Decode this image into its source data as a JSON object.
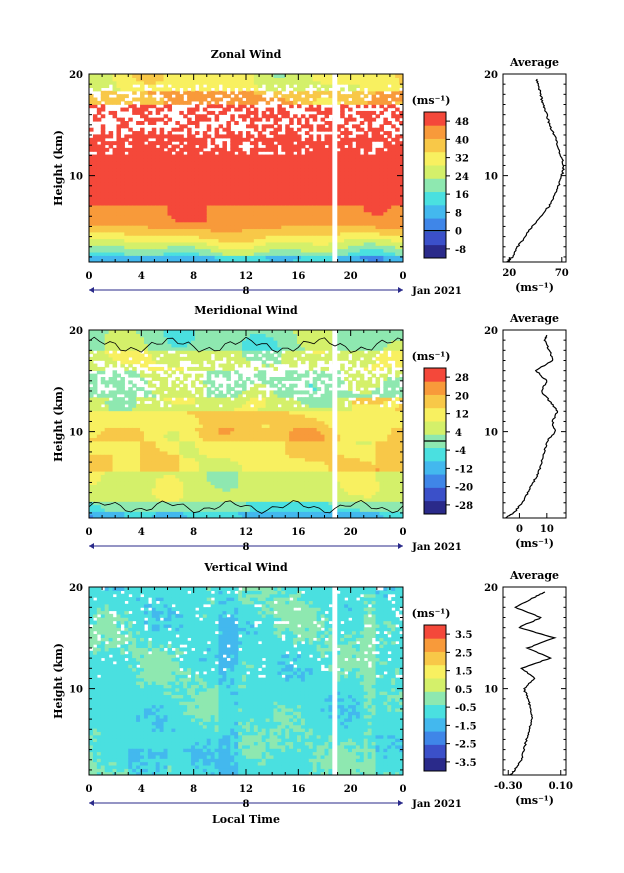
{
  "colors": {
    "palette": [
      "#2a2a8a",
      "#3b50c9",
      "#3f86e8",
      "#43b8ee",
      "#4ae0e0",
      "#8ee8b0",
      "#d4f06a",
      "#f8f060",
      "#f8c848",
      "#f89a3a",
      "#f4483a"
    ],
    "line": "#000000",
    "contour": "#000000"
  },
  "chart_data": [
    {
      "type": "heatmap",
      "title": "Zonal Wind",
      "ylabel": "Height (km)",
      "xlabel": "",
      "x_ticks": [
        "0",
        "4",
        "8",
        "12",
        "16",
        "20",
        "0"
      ],
      "y_ticks": [
        "10",
        "20"
      ],
      "ylim": [
        1.5,
        20
      ],
      "xlim": [
        0,
        24
      ],
      "day_label": "8",
      "date_label": "Jan 2021",
      "colorbar": {
        "unit": "(ms⁻¹)",
        "ticks": [
          "48",
          "40",
          "32",
          "24",
          "16",
          "8",
          "0",
          "-8"
        ],
        "min": -12,
        "max": 52,
        "zero_line": true
      },
      "data_gap_hours": [
        18.6,
        18.9
      ],
      "profile": {
        "title": "Average",
        "unit": "(ms⁻¹)",
        "x_ticks": [
          "20",
          "70"
        ],
        "xlim": [
          14,
          74
        ],
        "heights": [
          1.5,
          2,
          3,
          4,
          5,
          6,
          7,
          8,
          9,
          10,
          11,
          12,
          13,
          14,
          15,
          16,
          17,
          18,
          19,
          19.5
        ],
        "values": [
          18,
          23,
          28,
          35,
          42,
          50,
          58,
          63,
          67,
          70,
          72,
          69,
          66,
          63,
          58,
          56,
          52,
          50,
          47,
          46
        ]
      }
    },
    {
      "type": "heatmap",
      "title": "Meridional Wind",
      "ylabel": "Height (km)",
      "xlabel": "",
      "x_ticks": [
        "0",
        "4",
        "8",
        "12",
        "16",
        "20",
        "0"
      ],
      "y_ticks": [
        "10",
        "20"
      ],
      "ylim": [
        1.5,
        20
      ],
      "xlim": [
        0,
        24
      ],
      "day_label": "8",
      "date_label": "Jan 2021",
      "colorbar": {
        "unit": "(ms⁻¹)",
        "ticks": [
          "28",
          "20",
          "12",
          "4",
          "-4",
          "-12",
          "-20",
          "-28"
        ],
        "min": -32,
        "max": 32,
        "zero_line": true
      },
      "data_gap_hours": [
        18.6,
        18.9
      ],
      "profile": {
        "title": "Average",
        "unit": "(ms⁻¹)",
        "x_ticks": [
          "0",
          "10"
        ],
        "xlim": [
          -6,
          17
        ],
        "heights": [
          1.5,
          2,
          3,
          4,
          5,
          6,
          7,
          8,
          9,
          10,
          11,
          12,
          13,
          14,
          15,
          16,
          17,
          18,
          19,
          19.5
        ],
        "values": [
          -5,
          -2,
          1,
          3,
          5,
          7,
          8,
          9,
          10,
          13,
          12,
          14,
          11,
          8,
          10,
          6,
          12,
          11,
          9,
          10
        ]
      }
    },
    {
      "type": "heatmap",
      "title": "Vertical Wind",
      "ylabel": "Height (km)",
      "xlabel": "Local Time",
      "x_ticks": [
        "0",
        "4",
        "8",
        "12",
        "16",
        "20",
        "0"
      ],
      "y_ticks": [
        "10",
        "20"
      ],
      "ylim": [
        1.5,
        20
      ],
      "xlim": [
        0,
        24
      ],
      "day_label": "8",
      "date_label": "Jan 2021",
      "colorbar": {
        "unit": "(ms⁻¹)",
        "ticks": [
          "3.5",
          "2.5",
          "1.5",
          "0.5",
          "-0.5",
          "-1.5",
          "-2.5",
          "-3.5"
        ],
        "min": -4,
        "max": 4,
        "zero_line": false
      },
      "data_gap_hours": [
        18.6,
        18.9
      ],
      "profile": {
        "title": "Average",
        "unit": "(ms⁻¹)",
        "x_ticks": [
          "-0.30",
          "0.10"
        ],
        "xlim": [
          -0.34,
          0.14
        ],
        "heights": [
          1.5,
          2,
          3,
          4,
          5,
          6,
          7,
          8,
          9,
          10,
          11,
          12,
          13,
          14,
          15,
          16,
          17,
          18,
          19,
          19.5
        ],
        "values": [
          -0.28,
          -0.25,
          -0.2,
          -0.18,
          -0.16,
          -0.14,
          -0.12,
          -0.13,
          -0.15,
          -0.18,
          -0.1,
          -0.2,
          0.02,
          -0.15,
          0.05,
          -0.22,
          -0.05,
          -0.25,
          -0.1,
          -0.02
        ]
      }
    }
  ]
}
